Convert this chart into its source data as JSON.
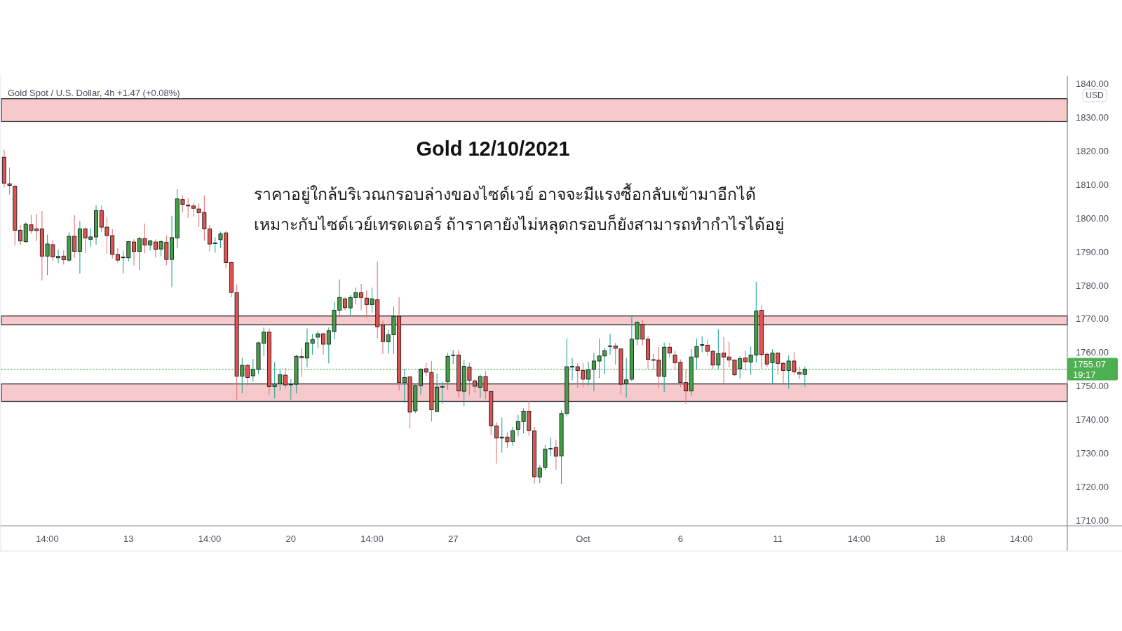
{
  "chart_data": {
    "type": "candlestick",
    "title": "Gold 12/10/2021",
    "subtitle": "Gold Spot / U.S. Dollar, 4h +1.47 (+0.08%)",
    "annotations": [
      "ราคาอยู่ใกล้บริเวณกรอบล่างของไซด์เวย์ อาจจะมีแรงซื้อกลับเข้ามาอีกได้",
      "เหมาะกับไซด์เวย์เทรดเดอร์ ถ้าราคายังไม่หลุดกรอบก็ยังสามารถทำกำไรได้อยู่"
    ],
    "ylabel": "USD",
    "categories": [
      null,
      null,
      null,
      null,
      null,
      null,
      null,
      null,
      "14:00",
      null,
      null,
      null,
      null,
      null,
      null,
      null,
      null,
      null,
      null,
      null,
      null,
      null,
      null,
      "13",
      null,
      null,
      null,
      null,
      null,
      null,
      null,
      null,
      null,
      null,
      null,
      null,
      null,
      null,
      "14:00",
      null,
      null,
      null,
      null,
      null,
      null,
      null,
      null,
      null,
      null,
      null,
      null,
      null,
      null,
      "20",
      null,
      null,
      null,
      null,
      null,
      null,
      null,
      null,
      null,
      null,
      null,
      null,
      null,
      null,
      "14:00",
      null,
      null,
      null,
      null,
      null,
      null,
      null,
      null,
      null,
      null,
      null,
      null,
      null,
      null,
      "27",
      null,
      null,
      null,
      null,
      null,
      null,
      null,
      null,
      null,
      null,
      null,
      null,
      null,
      null,
      null,
      null,
      null,
      null,
      null,
      null,
      null,
      null,
      null,
      "Oct",
      null,
      null,
      null,
      null,
      null,
      null,
      null,
      null,
      null,
      null,
      null,
      null,
      null,
      null,
      null,
      null,
      null,
      "6",
      null,
      null,
      null,
      null,
      null,
      null,
      null,
      null,
      null,
      null,
      null,
      null,
      null,
      null,
      null,
      null,
      null,
      "11",
      null,
      null,
      null,
      null,
      null,
      null,
      null,
      null,
      null,
      null,
      null,
      null,
      null,
      null,
      "14:00",
      null,
      null,
      null,
      null,
      null,
      null,
      null,
      null,
      null,
      null,
      null,
      null,
      null,
      null,
      "18",
      null,
      null,
      null,
      null,
      null,
      null,
      null,
      null,
      null,
      null,
      null,
      null,
      null,
      null,
      "14:00",
      null,
      null,
      null,
      null,
      null,
      null,
      null,
      null
    ],
    "ohlc": [
      [
        1818.1,
        1820.4,
        1809.1,
        1810.4
      ],
      [
        1810.2,
        1815.1,
        1807.0,
        1809.7
      ],
      [
        1809.5,
        1809.8,
        1791.8,
        1796.4
      ],
      [
        1796.4,
        1797.9,
        1792.0,
        1793.2
      ],
      [
        1793.0,
        1798.7,
        1792.7,
        1798.2
      ],
      [
        1798.0,
        1801.0,
        1795.3,
        1796.3
      ],
      [
        1796.8,
        1801.2,
        1793.2,
        1796.3
      ],
      [
        1796.8,
        1802.1,
        1781.4,
        1788.7
      ],
      [
        1788.7,
        1795.1,
        1783.1,
        1792.3
      ],
      [
        1792.1,
        1793.4,
        1787.3,
        1788.5
      ],
      [
        1788.2,
        1790.7,
        1786.6,
        1788.6
      ],
      [
        1788.7,
        1790.4,
        1786.2,
        1787.6
      ],
      [
        1787.5,
        1795.8,
        1786.9,
        1794.6
      ],
      [
        1794.6,
        1800.9,
        1788.2,
        1790.1
      ],
      [
        1790.1,
        1799.1,
        1783.5,
        1796.8
      ],
      [
        1796.8,
        1797.2,
        1789.6,
        1794.1
      ],
      [
        1793.7,
        1797.0,
        1791.5,
        1794.4
      ],
      [
        1794.4,
        1803.8,
        1792.1,
        1802.2
      ],
      [
        1802.2,
        1803.8,
        1795.8,
        1797.3
      ],
      [
        1797.3,
        1800.3,
        1789.4,
        1794.8
      ],
      [
        1794.8,
        1796.7,
        1788.0,
        1789.2
      ],
      [
        1789.2,
        1791.1,
        1786.8,
        1787.5
      ],
      [
        1788.2,
        1790.3,
        1783.5,
        1788.4
      ],
      [
        1788.2,
        1793.2,
        1787.1,
        1793.0
      ],
      [
        1792.9,
        1793.7,
        1785.9,
        1790.1
      ],
      [
        1790.1,
        1794.4,
        1784.6,
        1793.9
      ],
      [
        1793.9,
        1798.4,
        1789.6,
        1792.0
      ],
      [
        1792.0,
        1793.5,
        1790.4,
        1793.2
      ],
      [
        1792.9,
        1793.7,
        1788.3,
        1790.7
      ],
      [
        1790.8,
        1793.4,
        1788.7,
        1793.0
      ],
      [
        1792.8,
        1794.8,
        1786.0,
        1787.7
      ],
      [
        1787.7,
        1800.7,
        1779.5,
        1794.2
      ],
      [
        1794.1,
        1808.6,
        1791.0,
        1805.7
      ],
      [
        1805.5,
        1806.7,
        1801.7,
        1804.1
      ],
      [
        1803.9,
        1805.9,
        1800.0,
        1803.6
      ],
      [
        1803.6,
        1804.5,
        1800.5,
        1802.9
      ],
      [
        1802.7,
        1804.3,
        1797.3,
        1801.6
      ],
      [
        1801.7,
        1806.8,
        1793.2,
        1796.8
      ],
      [
        1796.8,
        1798.0,
        1790.1,
        1792.3
      ],
      [
        1792.5,
        1794.3,
        1789.7,
        1792.6
      ],
      [
        1793.6,
        1796.0,
        1791.1,
        1795.3
      ],
      [
        1795.6,
        1796.2,
        1785.1,
        1786.8
      ],
      [
        1786.8,
        1787.0,
        1776.5,
        1777.9
      ],
      [
        1777.8,
        1780.3,
        1746.0,
        1753.0
      ],
      [
        1753.0,
        1758.5,
        1747.9,
        1756.2
      ],
      [
        1756.2,
        1756.6,
        1750.2,
        1752.6
      ],
      [
        1753.1,
        1758.1,
        1751.4,
        1755.0
      ],
      [
        1755.0,
        1763.2,
        1753.6,
        1762.9
      ],
      [
        1762.8,
        1767.5,
        1759.0,
        1766.1
      ],
      [
        1766.1,
        1767.2,
        1747.4,
        1749.9
      ],
      [
        1749.9,
        1757.1,
        1746.4,
        1750.7
      ],
      [
        1750.7,
        1754.9,
        1748.8,
        1753.4
      ],
      [
        1753.3,
        1755.4,
        1749.2,
        1750.4
      ],
      [
        1750.5,
        1752.1,
        1746.0,
        1750.6
      ],
      [
        1750.6,
        1759.4,
        1747.9,
        1758.9
      ],
      [
        1758.8,
        1761.3,
        1752.8,
        1758.5
      ],
      [
        1758.4,
        1767.2,
        1755.7,
        1762.9
      ],
      [
        1762.8,
        1765.6,
        1759.4,
        1763.9
      ],
      [
        1764.6,
        1766.5,
        1761.3,
        1765.6
      ],
      [
        1765.6,
        1765.8,
        1759.4,
        1762.5
      ],
      [
        1762.5,
        1767.5,
        1756.8,
        1766.5
      ],
      [
        1766.3,
        1775.1,
        1763.9,
        1772.6
      ],
      [
        1772.6,
        1781.8,
        1770.5,
        1776.4
      ],
      [
        1776.0,
        1776.4,
        1772.6,
        1773.4
      ],
      [
        1773.3,
        1777.1,
        1771.2,
        1776.4
      ],
      [
        1776.4,
        1779.3,
        1774.4,
        1777.8
      ],
      [
        1777.8,
        1780.4,
        1772.6,
        1776.4
      ],
      [
        1776.2,
        1778.5,
        1770.3,
        1774.3
      ],
      [
        1774.3,
        1779.3,
        1771.9,
        1776.0
      ],
      [
        1775.7,
        1787.1,
        1764.2,
        1767.7
      ],
      [
        1768.2,
        1769.6,
        1759.6,
        1763.3
      ],
      [
        1763.2,
        1766.8,
        1759.7,
        1765.3
      ],
      [
        1765.3,
        1773.7,
        1759.6,
        1770.8
      ],
      [
        1770.8,
        1776.5,
        1748.8,
        1751.1
      ],
      [
        1751.1,
        1755.2,
        1745.0,
        1752.6
      ],
      [
        1752.8,
        1752.9,
        1737.4,
        1742.3
      ],
      [
        1742.7,
        1750.7,
        1742.0,
        1750.2
      ],
      [
        1750.2,
        1755.4,
        1747.4,
        1755.1
      ],
      [
        1755.2,
        1757.0,
        1753.1,
        1754.2
      ],
      [
        1754.1,
        1757.5,
        1739.5,
        1743.0
      ],
      [
        1742.5,
        1753.8,
        1742.3,
        1749.7
      ],
      [
        1749.8,
        1751.4,
        1744.8,
        1749.9
      ],
      [
        1751.3,
        1759.9,
        1749.0,
        1758.9
      ],
      [
        1759.2,
        1760.8,
        1756.6,
        1759.3
      ],
      [
        1759.3,
        1760.8,
        1746.7,
        1748.6
      ],
      [
        1748.5,
        1757.8,
        1744.1,
        1755.9
      ],
      [
        1755.7,
        1757.0,
        1747.4,
        1751.8
      ],
      [
        1751.6,
        1752.1,
        1748.1,
        1750.0
      ],
      [
        1749.7,
        1753.5,
        1746.6,
        1752.9
      ],
      [
        1752.9,
        1754.5,
        1746.2,
        1748.6
      ],
      [
        1748.4,
        1748.6,
        1735.5,
        1738.2
      ],
      [
        1738.2,
        1739.3,
        1727.0,
        1734.6
      ],
      [
        1734.6,
        1740.7,
        1730.3,
        1734.9
      ],
      [
        1734.9,
        1736.3,
        1731.6,
        1733.5
      ],
      [
        1733.6,
        1737.9,
        1732.3,
        1736.8
      ],
      [
        1737.2,
        1741.5,
        1735.1,
        1739.5
      ],
      [
        1739.5,
        1743.4,
        1736.0,
        1742.6
      ],
      [
        1742.6,
        1745.6,
        1735.3,
        1736.8
      ],
      [
        1736.7,
        1737.9,
        1720.9,
        1723.1
      ],
      [
        1723.0,
        1726.6,
        1721.2,
        1725.7
      ],
      [
        1725.9,
        1732.5,
        1724.9,
        1731.3
      ],
      [
        1731.4,
        1734.8,
        1729.2,
        1731.5
      ],
      [
        1731.8,
        1734.1,
        1725.2,
        1729.2
      ],
      [
        1729.3,
        1742.9,
        1721.0,
        1741.9
      ],
      [
        1741.9,
        1764.2,
        1741.0,
        1755.8
      ],
      [
        1755.7,
        1758.5,
        1751.8,
        1755.9
      ],
      [
        1755.8,
        1756.8,
        1749.5,
        1754.7
      ],
      [
        1754.7,
        1756.8,
        1749.7,
        1752.1
      ],
      [
        1752.1,
        1757.3,
        1750.2,
        1754.9
      ],
      [
        1755.0,
        1759.9,
        1748.6,
        1757.5
      ],
      [
        1757.5,
        1764.2,
        1752.4,
        1759.0
      ],
      [
        1759.0,
        1761.5,
        1753.6,
        1760.6
      ],
      [
        1761.9,
        1765.6,
        1759.4,
        1762.0
      ],
      [
        1762.0,
        1762.9,
        1756.4,
        1761.3
      ],
      [
        1761.1,
        1761.3,
        1747.4,
        1750.6
      ],
      [
        1750.7,
        1758.5,
        1746.6,
        1751.9
      ],
      [
        1752.1,
        1770.8,
        1751.5,
        1764.0
      ],
      [
        1764.0,
        1769.4,
        1762.2,
        1769.0
      ],
      [
        1768.4,
        1769.8,
        1762.2,
        1764.0
      ],
      [
        1764.0,
        1764.9,
        1755.2,
        1758.0
      ],
      [
        1757.9,
        1759.7,
        1754.9,
        1757.8
      ],
      [
        1757.8,
        1761.6,
        1749.5,
        1753.0
      ],
      [
        1752.9,
        1763.0,
        1748.3,
        1761.6
      ],
      [
        1761.6,
        1762.9,
        1758.4,
        1759.9
      ],
      [
        1759.3,
        1760.6,
        1754.9,
        1757.0
      ],
      [
        1757.1,
        1758.0,
        1749.7,
        1751.1
      ],
      [
        1751.1,
        1755.0,
        1744.8,
        1748.6
      ],
      [
        1748.6,
        1761.1,
        1747.2,
        1758.7
      ],
      [
        1758.7,
        1764.2,
        1754.9,
        1761.8
      ],
      [
        1762.2,
        1764.9,
        1760.1,
        1762.4
      ],
      [
        1762.2,
        1764.0,
        1759.0,
        1760.4
      ],
      [
        1760.4,
        1760.8,
        1755.2,
        1756.3
      ],
      [
        1756.3,
        1767.0,
        1755.2,
        1759.7
      ],
      [
        1759.9,
        1764.7,
        1750.9,
        1758.7
      ],
      [
        1758.7,
        1763.2,
        1755.6,
        1757.8
      ],
      [
        1757.8,
        1758.0,
        1753.1,
        1753.4
      ],
      [
        1755.2,
        1759.0,
        1752.2,
        1758.2
      ],
      [
        1758.4,
        1760.6,
        1754.7,
        1757.3
      ],
      [
        1757.2,
        1761.8,
        1753.4,
        1759.3
      ],
      [
        1759.3,
        1781.1,
        1757.0,
        1772.4
      ],
      [
        1772.6,
        1774.2,
        1755.2,
        1759.4
      ],
      [
        1759.5,
        1760.1,
        1755.7,
        1756.6
      ],
      [
        1757.0,
        1761.0,
        1750.9,
        1759.9
      ],
      [
        1759.9,
        1760.1,
        1753.5,
        1756.8
      ],
      [
        1756.8,
        1757.3,
        1750.9,
        1754.7
      ],
      [
        1754.7,
        1759.2,
        1749.3,
        1757.5
      ],
      [
        1757.5,
        1760.1,
        1753.5,
        1754.3
      ],
      [
        1754.1,
        1755.9,
        1752.1,
        1753.6
      ],
      [
        1753.5,
        1755.9,
        1749.9,
        1755.07
      ],
      null,
      null,
      null,
      null,
      null,
      null,
      null,
      null,
      null,
      null,
      null,
      null,
      null,
      null,
      null,
      null,
      null,
      null,
      null,
      null,
      null,
      null,
      null,
      null,
      null,
      null,
      null,
      null,
      null,
      null,
      null,
      null,
      null,
      null,
      null,
      null,
      null,
      null,
      null,
      null,
      null,
      null,
      null,
      null,
      null,
      null,
      null,
      null
    ],
    "ylim": [
      1708.5,
      1841.5
    ],
    "yticks": [
      {
        "value": 1710,
        "label": "1710.00"
      },
      {
        "value": 1720,
        "label": "1720.00"
      },
      {
        "value": 1730,
        "label": "1730.00"
      },
      {
        "value": 1740,
        "label": "1740.00"
      },
      {
        "value": 1750,
        "label": "1750.00"
      },
      {
        "value": 1760,
        "label": "1760.00"
      },
      {
        "value": 1770,
        "label": "1770.00"
      },
      {
        "value": 1780,
        "label": "1780.00"
      },
      {
        "value": 1790,
        "label": "1790.00"
      },
      {
        "value": 1800,
        "label": "1800.00"
      },
      {
        "value": 1810,
        "label": "1810.00"
      },
      {
        "value": 1820,
        "label": "1820.00"
      },
      {
        "value": 1830,
        "label": "1830.00"
      },
      {
        "value": 1840,
        "label": "1840.00"
      }
    ],
    "bands": [
      {
        "axis": "y",
        "from": 1828.7,
        "to": 1835.5,
        "color": "#f6c9cc"
      },
      {
        "axis": "y",
        "from": 1768.3,
        "to": 1770.9,
        "color": "#f6c9cc"
      },
      {
        "axis": "y",
        "from": 1745.5,
        "to": 1750.7,
        "color": "#f6c9cc"
      }
    ],
    "ref_lines": [
      {
        "axis": "y",
        "value": 1755.07,
        "label": "1755.07\n19:17",
        "color": "#4caf50",
        "line_style": "dotted"
      }
    ]
  }
}
